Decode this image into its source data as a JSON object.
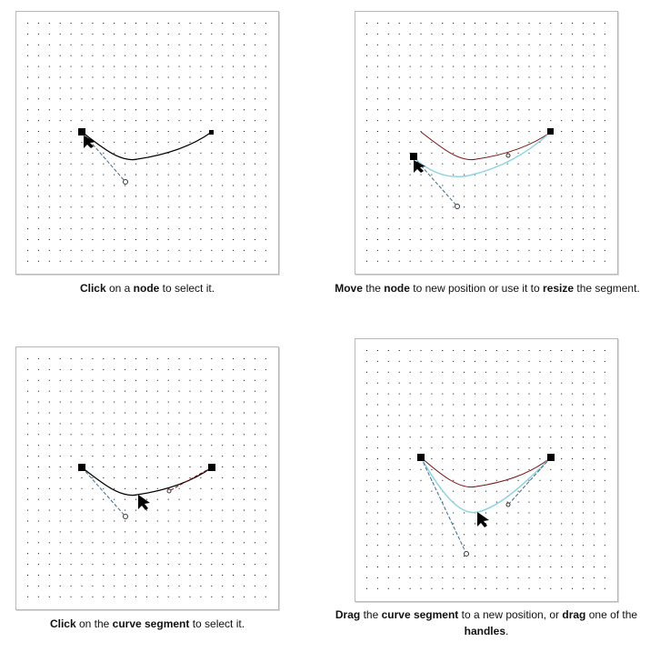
{
  "panels": [
    {
      "id": "select-node",
      "caption": [
        {
          "t": "Click",
          "b": true
        },
        {
          "t": " on a ",
          "b": false
        },
        {
          "t": "node",
          "b": true
        },
        {
          "t": " to select it.",
          "b": false
        }
      ]
    },
    {
      "id": "move-node",
      "caption": [
        {
          "t": "Move",
          "b": true
        },
        {
          "t": " the ",
          "b": false
        },
        {
          "t": "node",
          "b": true
        },
        {
          "t": " to new position or use it to ",
          "b": false
        },
        {
          "t": "resize",
          "b": true
        },
        {
          "t": " the segment.",
          "b": false
        }
      ]
    },
    {
      "id": "select-segment",
      "caption": [
        {
          "t": "Click",
          "b": true
        },
        {
          "t": " on the ",
          "b": false
        },
        {
          "t": "curve segment",
          "b": true
        },
        {
          "t": " to select it.",
          "b": false
        }
      ]
    },
    {
      "id": "drag-segment",
      "caption": [
        {
          "t": "Drag",
          "b": true
        },
        {
          "t": " the ",
          "b": false
        },
        {
          "t": "curve segment",
          "b": true
        },
        {
          "t": " to a new position, or ",
          "b": false
        },
        {
          "t": "drag",
          "b": true
        },
        {
          "t": " one of the ",
          "b": false
        },
        {
          "t": "handles",
          "b": true
        },
        {
          "t": ".",
          "b": false
        }
      ]
    }
  ],
  "colors": {
    "curve": "#000000",
    "ghost_curve": "#7a1010",
    "preview_curve": "#8fd3e0",
    "handle_line": "#3a6a8a",
    "grid_dot": "#000000"
  },
  "icons": [
    "node-square-icon",
    "control-handle-icon",
    "mouse-pointer-icon"
  ]
}
